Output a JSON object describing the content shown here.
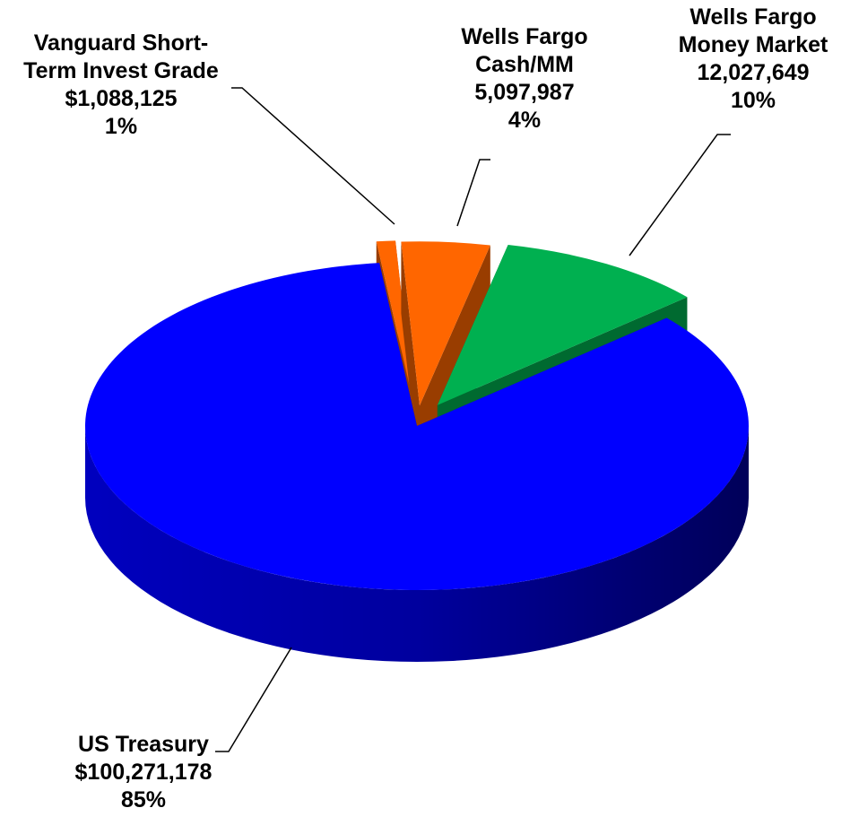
{
  "chart_data": {
    "type": "pie3d",
    "categories": [
      "Vanguard Short-Term Invest Grade",
      "Wells Fargo Cash/MM",
      "Wells Fargo Money Market",
      "US Treasury"
    ],
    "values": [
      1088125,
      5097987,
      12027649,
      100271178
    ],
    "value_labels": [
      "$1,088,125",
      "5,097,987",
      "12,027,649",
      "$100,271,178"
    ],
    "percents": [
      1,
      4,
      10,
      85
    ],
    "percent_labels": [
      "1%",
      "4%",
      "10%",
      "85%"
    ],
    "colors": [
      "#ff6600",
      "#ff6600",
      "#00b050",
      "#0000ff"
    ]
  }
}
